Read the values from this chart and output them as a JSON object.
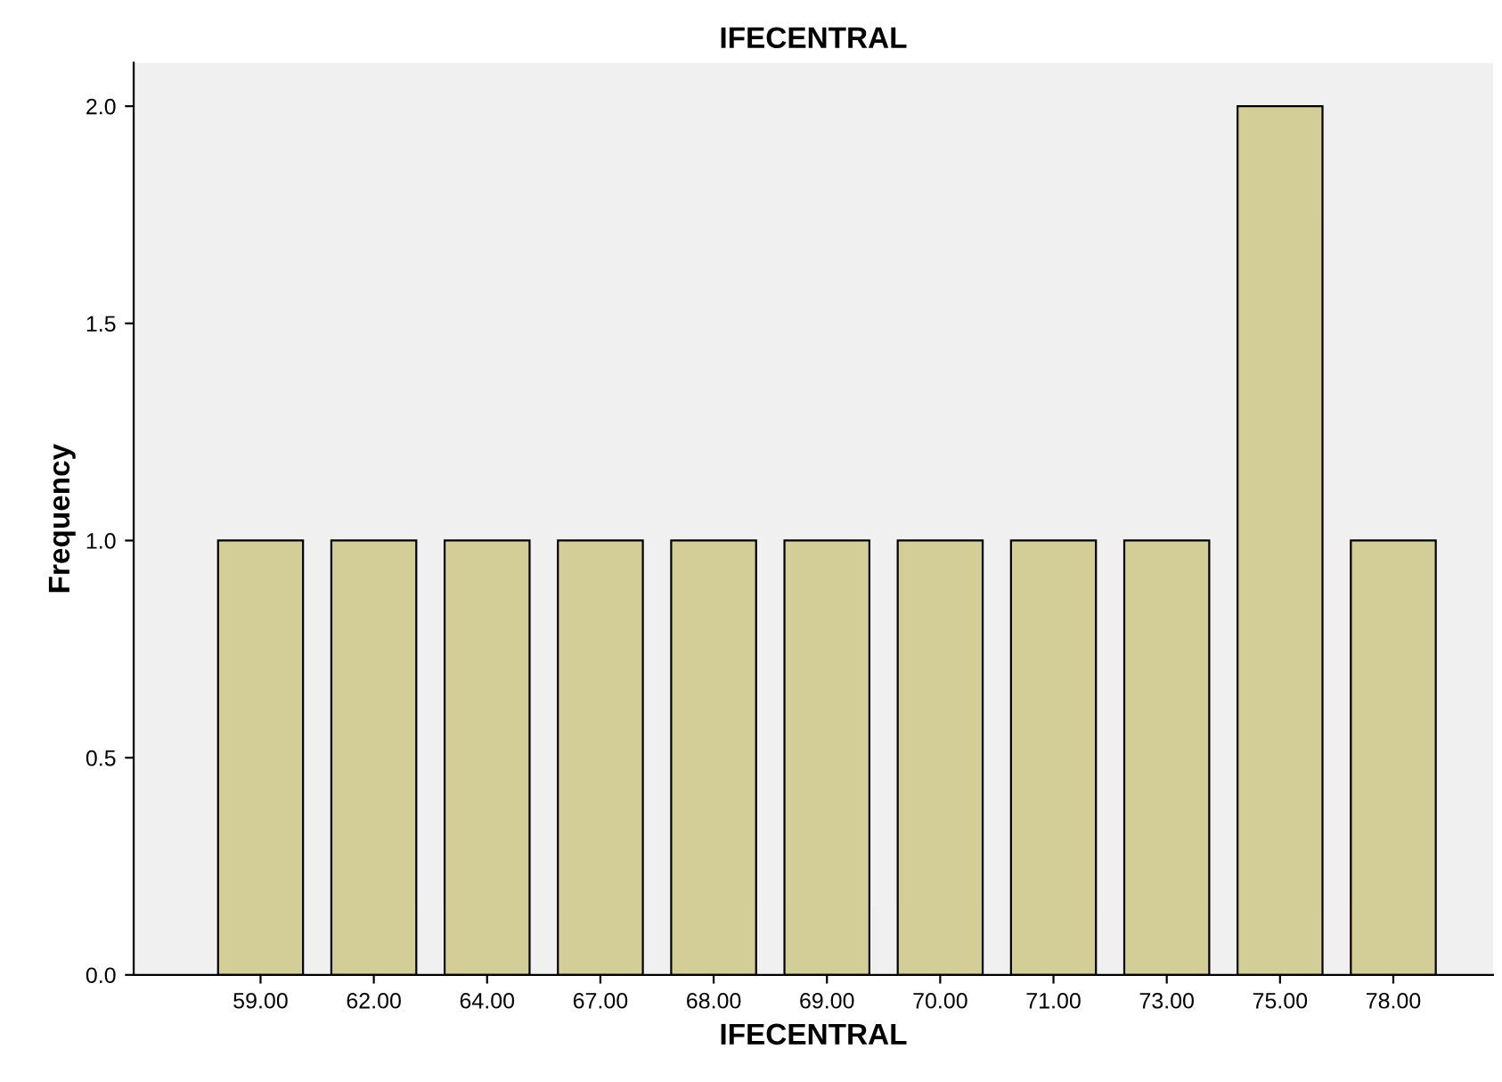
{
  "chart_data": {
    "type": "bar",
    "title": "IFECENTRAL",
    "xlabel": "IFECENTRAL",
    "ylabel": "Frequency",
    "categories": [
      "59.00",
      "62.00",
      "64.00",
      "67.00",
      "68.00",
      "69.00",
      "70.00",
      "71.00",
      "73.00",
      "75.00",
      "78.00"
    ],
    "values": [
      1,
      1,
      1,
      1,
      1,
      1,
      1,
      1,
      1,
      2,
      1
    ],
    "color": "#d3ce97",
    "ylim": [
      0,
      2.1
    ],
    "yticks": [
      {
        "value": 0,
        "label": "0.0"
      },
      {
        "value": 0.5,
        "label": "0.5"
      },
      {
        "value": 1,
        "label": "1.0"
      },
      {
        "value": 1.5,
        "label": "1.5"
      },
      {
        "value": 2,
        "label": "2.0"
      }
    ],
    "grid": false
  }
}
